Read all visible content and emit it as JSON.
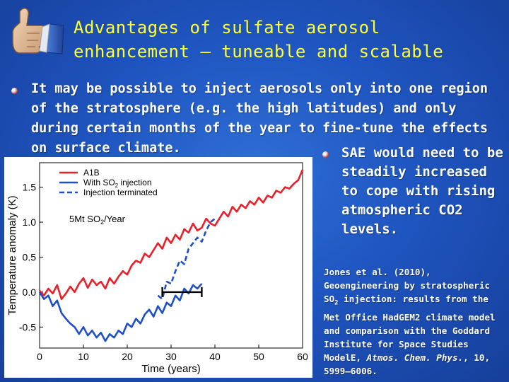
{
  "slide": {
    "title_line1": "Advantages of sulfate aerosol",
    "title_line2": "enhancement – tuneable and scalable",
    "bullet1": "It may be possible to inject aerosols only into one region of the stratosphere (e.g. the high latitudes) and only during certain months of the year to fine-tune the effects on surface climate.",
    "bullet2": "SAE would need to be steadily increased to cope with rising atmospheric CO2 levels.",
    "reference": {
      "authors": "Jones et al. (2010),",
      "title_a": "Geoengineering by stratospheric SO",
      "title_sub": "2",
      "title_b": " injection: results from the Met Office HadGEM2 climate model and comparison with the Goddard Institute for Space Studies ModelE,",
      "journal": "Atmos. Chem. Phys.",
      "volume": ", 10, 5999–6006."
    }
  },
  "chart_data": {
    "type": "line",
    "xlabel": "Time (years)",
    "ylabel": "Temperature anomaly (K)",
    "xlim": [
      0,
      60
    ],
    "ylim": [
      -0.8,
      1.85
    ],
    "xticks": [
      0,
      10,
      20,
      30,
      40,
      50,
      60
    ],
    "yticks": [
      -0.5,
      0.0,
      0.5,
      1.0,
      1.5
    ],
    "ytick_labels": [
      "-0.5",
      "0.0",
      "0.5",
      "1.0",
      "1.5"
    ],
    "annotation_text": "5Mt SO",
    "annotation_sub": "2",
    "annotation_tail": "/Year",
    "legend": [
      {
        "label": "A1B",
        "color": "#e8202a",
        "style": "solid"
      },
      {
        "label_a": "With SO",
        "label_sub": "2",
        "label_b": " injection",
        "color": "#1f4fc8",
        "style": "solid"
      },
      {
        "label": "Injection terminated",
        "color": "#1f4fc8",
        "style": "dashed"
      }
    ],
    "bar_start": 28,
    "bar_end": 37,
    "bar_y": 0.0,
    "series": [
      {
        "name": "A1B",
        "color": "#e8202a",
        "x": [
          0,
          1,
          2,
          3,
          4,
          5,
          6,
          7,
          8,
          9,
          10,
          11,
          12,
          13,
          14,
          15,
          16,
          17,
          18,
          19,
          20,
          21,
          22,
          23,
          24,
          25,
          26,
          27,
          28,
          29,
          30,
          31,
          32,
          33,
          34,
          35,
          36,
          37,
          38,
          39,
          40,
          41,
          42,
          43,
          44,
          45,
          46,
          47,
          48,
          49,
          50,
          51,
          52,
          53,
          54,
          55,
          56,
          57,
          58,
          59,
          60
        ],
        "y": [
          0.02,
          -0.05,
          0.05,
          -0.02,
          0.1,
          -0.1,
          -0.02,
          0.08,
          0.0,
          0.12,
          0.2,
          0.06,
          0.18,
          0.1,
          0.15,
          0.05,
          0.2,
          0.12,
          0.22,
          0.3,
          0.25,
          0.38,
          0.45,
          0.42,
          0.55,
          0.5,
          0.6,
          0.7,
          0.62,
          0.78,
          0.7,
          0.82,
          0.75,
          0.9,
          0.85,
          0.98,
          0.88,
          0.92,
          1.05,
          0.98,
          0.95,
          1.05,
          1.15,
          1.08,
          1.22,
          1.15,
          1.25,
          1.2,
          1.3,
          1.25,
          1.35,
          1.28,
          1.38,
          1.35,
          1.45,
          1.42,
          1.5,
          1.48,
          1.55,
          1.6,
          1.75
        ]
      },
      {
        "name": "With SO2 injection",
        "color": "#1f4fc8",
        "x": [
          0,
          1,
          2,
          3,
          4,
          5,
          6,
          7,
          8,
          9,
          10,
          11,
          12,
          13,
          14,
          15,
          16,
          17,
          18,
          19,
          20,
          21,
          22,
          23,
          24,
          25,
          26,
          27,
          28,
          29,
          30,
          31,
          32,
          33,
          34,
          35,
          36,
          37
        ],
        "y": [
          0.0,
          -0.1,
          -0.05,
          -0.2,
          -0.12,
          -0.3,
          -0.38,
          -0.45,
          -0.5,
          -0.6,
          -0.5,
          -0.62,
          -0.55,
          -0.65,
          -0.58,
          -0.7,
          -0.6,
          -0.65,
          -0.55,
          -0.6,
          -0.45,
          -0.5,
          -0.38,
          -0.45,
          -0.32,
          -0.25,
          -0.35,
          -0.2,
          -0.3,
          -0.15,
          -0.2,
          -0.05,
          -0.12,
          0.05,
          -0.02,
          0.1,
          0.05,
          0.12
        ]
      },
      {
        "name": "Injection terminated",
        "color": "#1f4fc8",
        "style": "dashed",
        "x": [
          27,
          28,
          29,
          30,
          31,
          32,
          33,
          34,
          35,
          36,
          37,
          38,
          39,
          40
        ],
        "y": [
          -0.05,
          -0.1,
          0.15,
          0.12,
          0.3,
          0.45,
          0.4,
          0.62,
          0.7,
          0.78,
          0.72,
          0.88,
          1.0,
          1.05
        ]
      }
    ]
  }
}
